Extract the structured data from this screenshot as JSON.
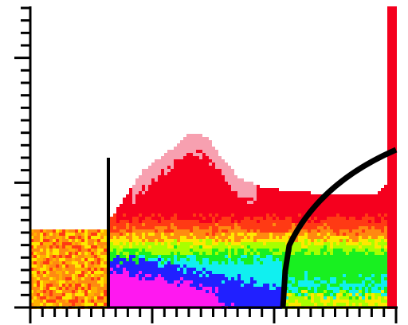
{
  "chart_data": {
    "type": "heatmap"
  }
}
